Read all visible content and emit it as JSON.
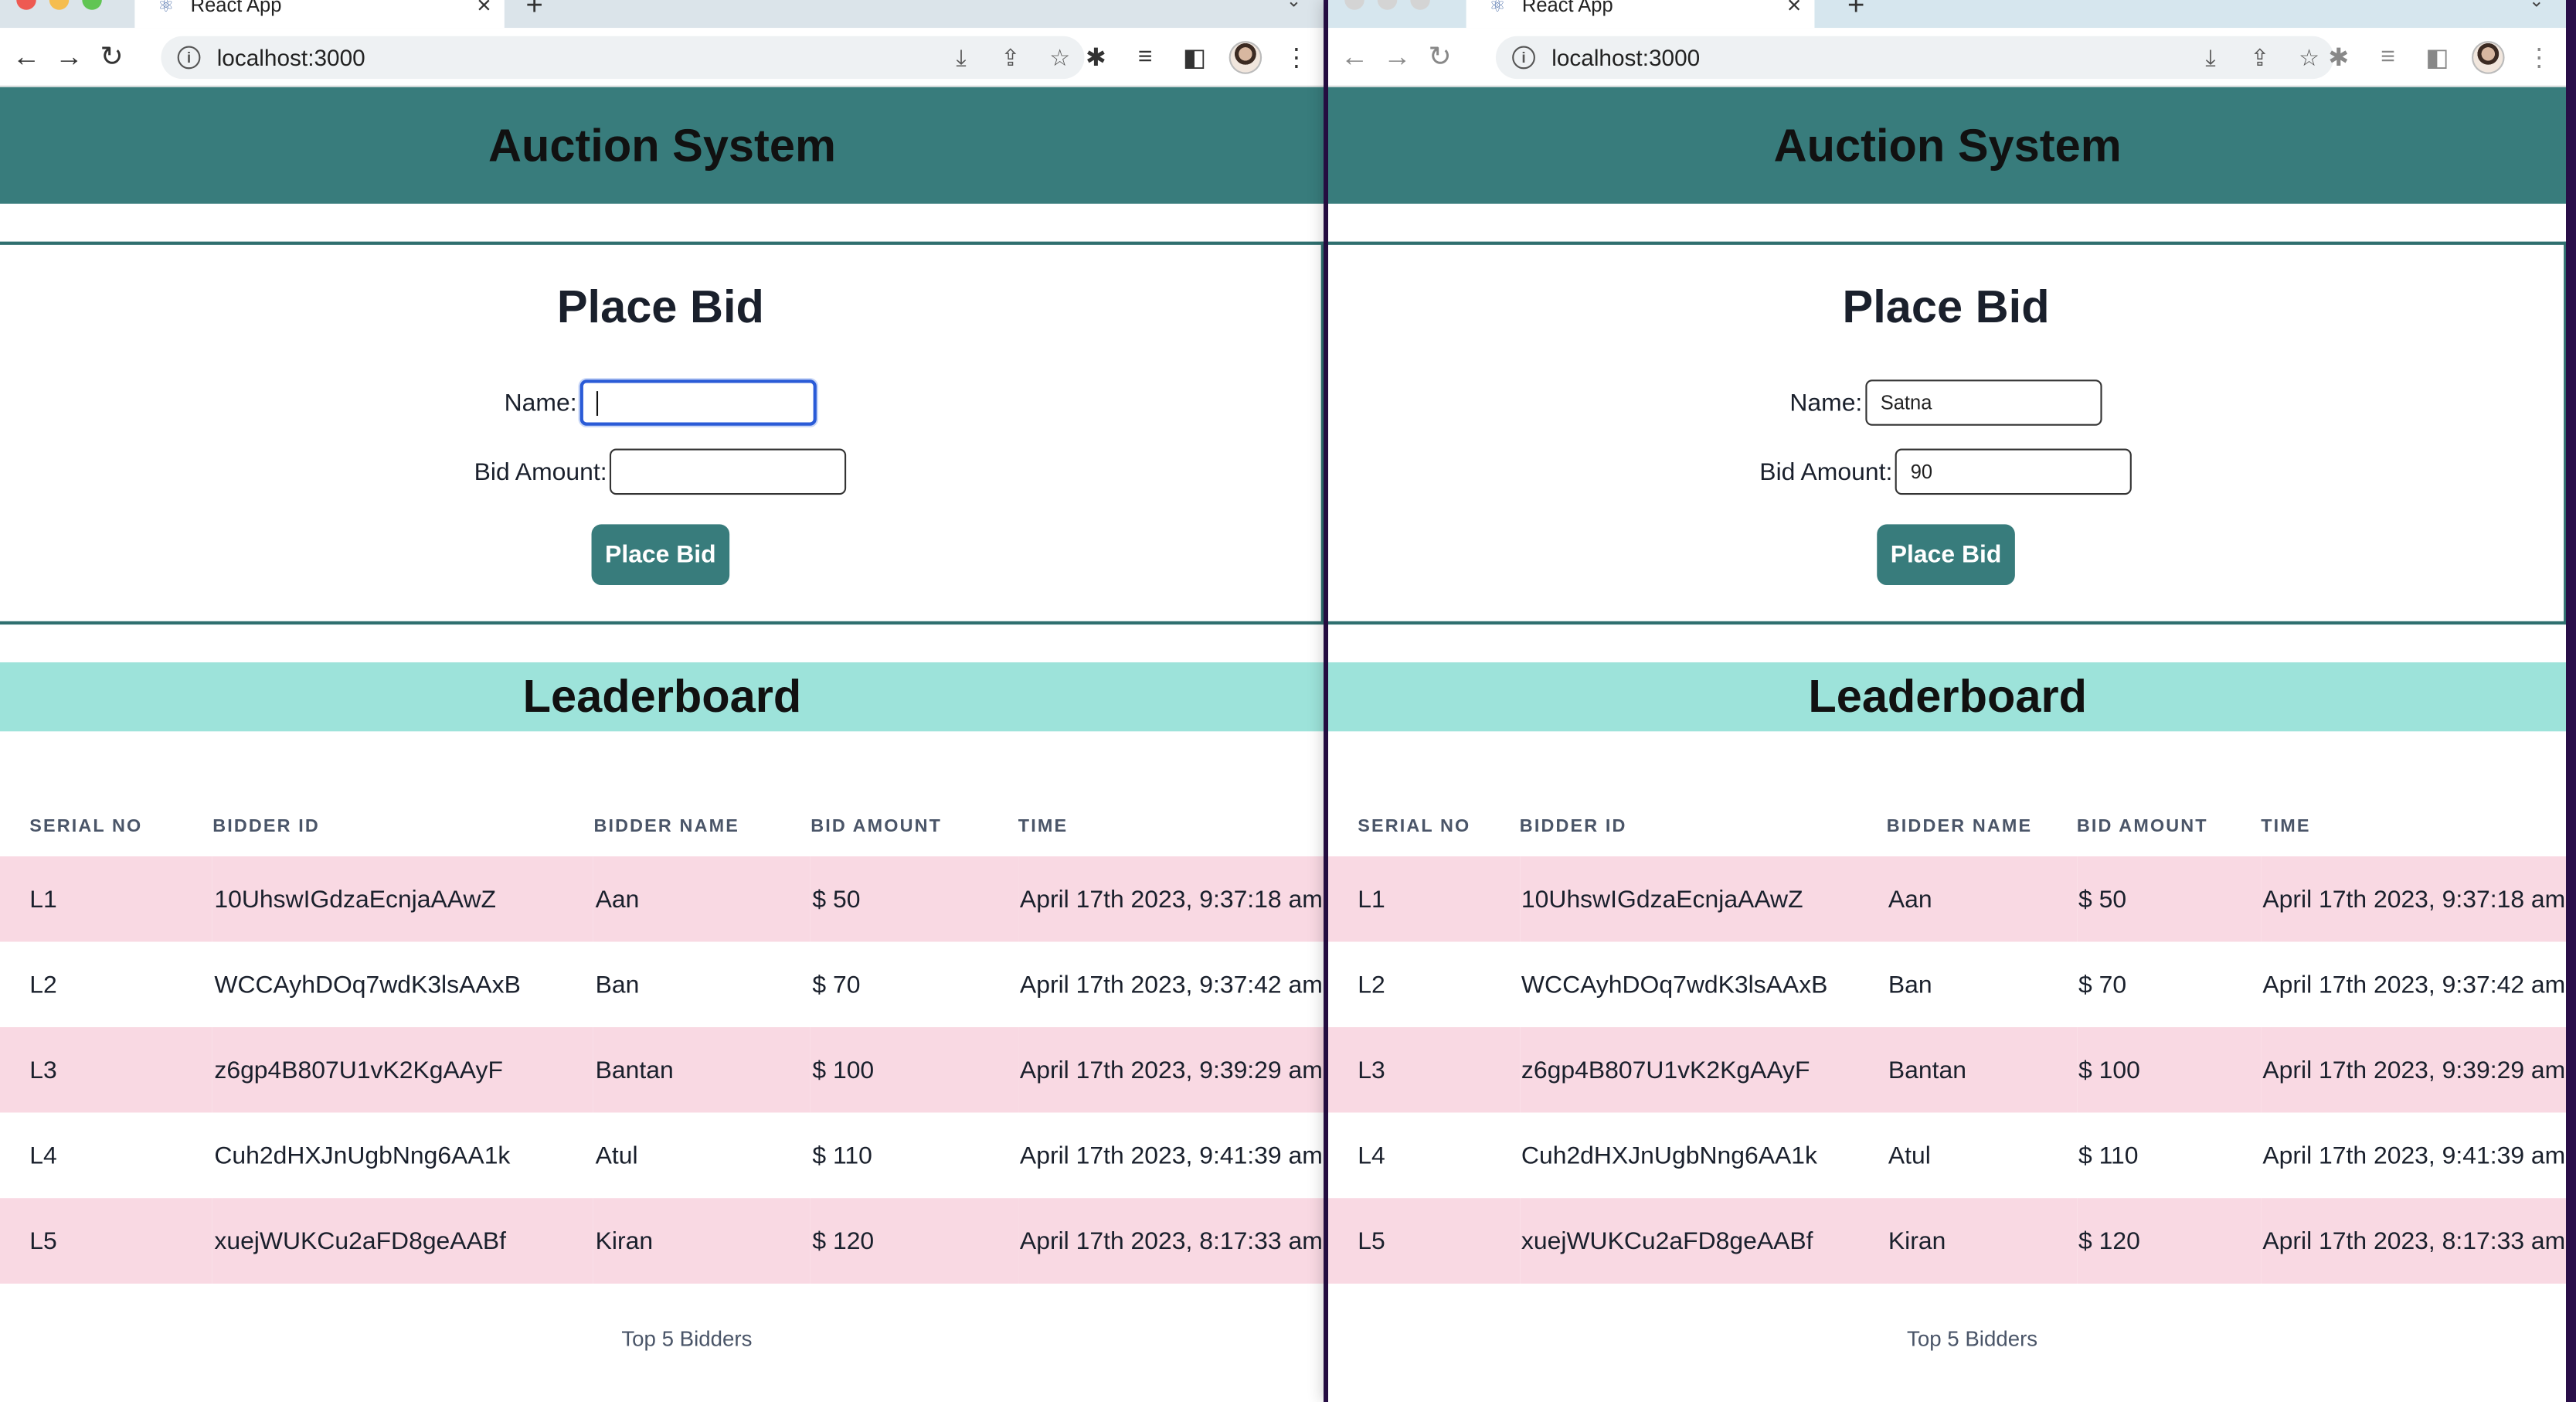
{
  "browser": {
    "tab_title": "React App",
    "url": "localhost:3000"
  },
  "app": {
    "title": "Auction System",
    "place_bid": {
      "heading": "Place Bid",
      "name_label": "Name:",
      "amount_label": "Bid Amount:",
      "button_label": "Place Bid"
    },
    "leaderboard": {
      "heading": "Leaderboard",
      "columns": [
        "SERIAL NO",
        "BIDDER ID",
        "BIDDER NAME",
        "BID AMOUNT",
        "TIME"
      ],
      "rows": [
        {
          "serial": "L1",
          "id": "10UhswIGdzaEcnjaAAwZ",
          "name": "Aan",
          "amount": "$ 50",
          "time": "April 17th 2023, 9:37:18 am"
        },
        {
          "serial": "L2",
          "id": "WCCAyhDOq7wdK3lsAAxB",
          "name": "Ban",
          "amount": "$ 70",
          "time": "April 17th 2023, 9:37:42 am"
        },
        {
          "serial": "L3",
          "id": "z6gp4B807U1vK2KgAAyF",
          "name": "Bantan",
          "amount": "$ 100",
          "time": "April 17th 2023, 9:39:29 am"
        },
        {
          "serial": "L4",
          "id": "Cuh2dHXJnUgbNng6AA1k",
          "name": "Atul",
          "amount": "$ 110",
          "time": "April 17th 2023, 9:41:39 am"
        },
        {
          "serial": "L5",
          "id": "xuejWUKCu2aFD8geAABf",
          "name": "Kiran",
          "amount": "$ 120",
          "time": "April 17th 2023, 8:17:33 am"
        }
      ],
      "caption": "Top 5 Bidders"
    }
  },
  "left_window": {
    "name_value": "",
    "amount_value": "",
    "name_focused": true
  },
  "right_window": {
    "name_value": "Satna",
    "amount_value": "90",
    "name_focused": false
  },
  "colors": {
    "header": "#387c7c",
    "leaderboard_bar": "#9de3da",
    "row_highlight": "#f9d9e3",
    "focus_ring": "#2a5bd7"
  },
  "icons": {
    "back": "arrow-left-icon",
    "forward": "arrow-right-icon",
    "reload": "reload-icon",
    "info": "info-icon",
    "download": "download-icon",
    "share": "share-icon",
    "star": "star-icon",
    "extensions": "puzzle-icon",
    "media": "media-icon",
    "sidepanel": "sidepanel-icon",
    "menu": "kebab-menu-icon"
  }
}
